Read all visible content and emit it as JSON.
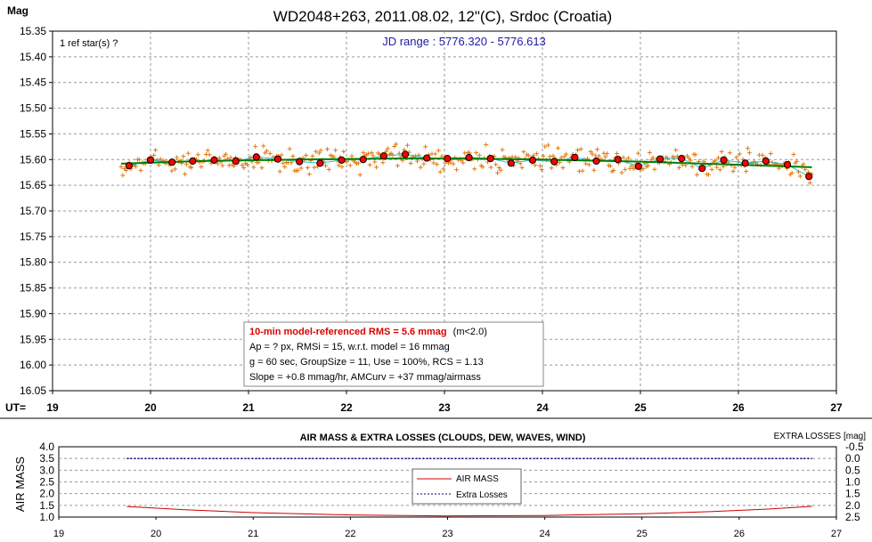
{
  "chart_data": [
    {
      "type": "scatter",
      "title": "WD2048+263, 2011.08.02, 12\"(C), Srdoc (Croatia)",
      "ylabel": "Mag",
      "xlabel": "UT=",
      "xlim": [
        19,
        27
      ],
      "ylim": [
        15.35,
        16.05
      ],
      "y_inverted": true,
      "grid": true,
      "x_ticks": [
        19,
        20,
        21,
        22,
        23,
        24,
        25,
        26,
        27
      ],
      "y_ticks": [
        15.35,
        15.4,
        15.45,
        15.5,
        15.55,
        15.6,
        15.65,
        15.7,
        15.75,
        15.8,
        15.85,
        15.9,
        15.95,
        16.0,
        16.05
      ],
      "y_tick_labels": [
        "15.35",
        "15.40",
        "15.45",
        "15.50",
        "15.55",
        "15.60",
        "15.65",
        "15.70",
        "15.75",
        "15.80",
        "15.85",
        "15.90",
        "15.95",
        "16.00",
        "16.05"
      ],
      "annotations": {
        "ref_stars": "1 ref star(s) ?",
        "jd_range": "JD range : 5776.320 - 5776.613"
      },
      "info_box": {
        "line1_bold": "10-min model-referenced RMS = 5.6 mmag",
        "line1_rest": "(m<2.0)",
        "line2": "Ap = ? px, RMSi = 15, w.r.t. model = 16 mmag",
        "line3": "g = 60 sec, GroupSize = 11, Use = 100%, RCS = 1.13",
        "line4": "Slope = +0.8 mmag/hr, AMCurv = +37 mmag/airmass"
      },
      "series": [
        {
          "kind": "group_means",
          "color": "#ff0000",
          "x": [
            19.78,
            20.0,
            20.22,
            20.43,
            20.65,
            20.87,
            21.08,
            21.3,
            21.52,
            21.73,
            21.95,
            22.17,
            22.38,
            22.6,
            22.82,
            23.03,
            23.25,
            23.47,
            23.68,
            23.9,
            24.12,
            24.33,
            24.55,
            24.77,
            24.98,
            25.2,
            25.42,
            25.63,
            25.85,
            26.07,
            26.28,
            26.5,
            26.72
          ],
          "y": [
            15.612,
            15.601,
            15.605,
            15.603,
            15.601,
            15.603,
            15.595,
            15.599,
            15.604,
            15.607,
            15.601,
            15.6,
            15.593,
            15.59,
            15.597,
            15.598,
            15.596,
            15.598,
            15.607,
            15.601,
            15.604,
            15.596,
            15.603,
            15.6,
            15.613,
            15.599,
            15.598,
            15.617,
            15.601,
            15.607,
            15.603,
            15.61,
            15.633
          ]
        },
        {
          "kind": "model_fit",
          "color": "#008000",
          "x": [
            19.7,
            20.5,
            21.5,
            22.5,
            23.2,
            24.0,
            25.0,
            26.0,
            26.75
          ],
          "y": [
            15.608,
            15.603,
            15.6,
            15.598,
            15.598,
            15.6,
            15.604,
            15.61,
            15.615
          ]
        }
      ],
      "colors": {
        "individual_points": "#e07a10",
        "smoothed_line": "#33bbcc"
      }
    },
    {
      "type": "line",
      "title": "AIR MASS & EXTRA LOSSES (CLOUDS, DEW, WAVES, WIND)",
      "ylabel": "AIR MASS",
      "y2label": "EXTRA LOSSES [mag]",
      "xlim": [
        19,
        27
      ],
      "ylim": [
        1.0,
        4.0
      ],
      "y2lim": [
        -0.5,
        2.5
      ],
      "y2_inverted": true,
      "x_ticks": [
        19,
        20,
        21,
        22,
        23,
        24,
        25,
        26,
        27
      ],
      "y_ticks": [
        1.0,
        1.5,
        2.0,
        2.5,
        3.0,
        3.5,
        4.0
      ],
      "y_tick_labels": [
        "1.0",
        "1.5",
        "2.0",
        "2.5",
        "3.0",
        "3.5",
        "4.0"
      ],
      "y2_tick_labels": [
        "-0.5",
        "0.0",
        "0.5",
        "1.0",
        "1.5",
        "2.0",
        "2.5"
      ],
      "series": [
        {
          "name": "AIR MASS",
          "color": "#cc0000",
          "style": "solid",
          "x": [
            19.7,
            20.3,
            21.0,
            22.0,
            23.0,
            24.0,
            25.0,
            25.7,
            26.3,
            26.75
          ],
          "y": [
            1.45,
            1.31,
            1.19,
            1.09,
            1.05,
            1.07,
            1.14,
            1.23,
            1.34,
            1.46
          ]
        },
        {
          "name": "Extra Losses",
          "color": "#000080",
          "style": "dotted",
          "x": [
            19.7,
            26.75
          ],
          "y": [
            0.0,
            0.0
          ]
        }
      ]
    }
  ]
}
